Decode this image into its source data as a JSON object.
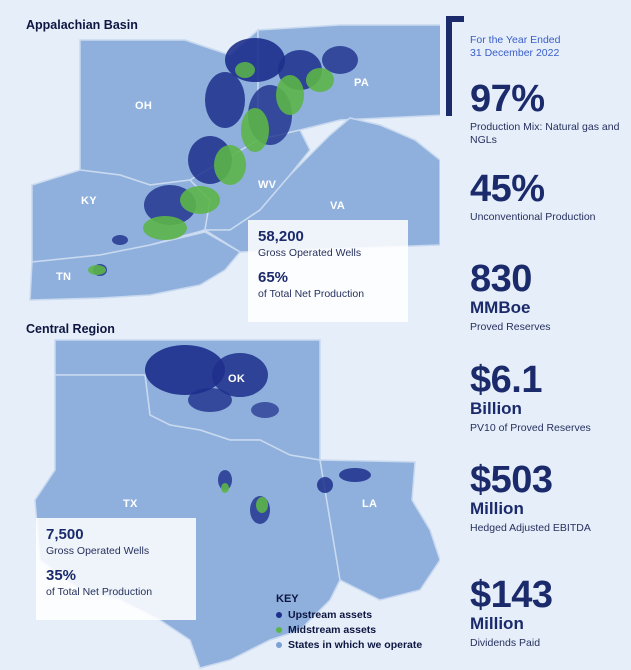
{
  "regions": {
    "appalachian": {
      "title": "Appalachian Basin",
      "states": [
        "OH",
        "PA",
        "KY",
        "WV",
        "VA",
        "TN"
      ],
      "stats": {
        "wells_value": "58,200",
        "wells_label": "Gross Operated Wells",
        "production_value": "65%",
        "production_label": "of Total Net Production"
      }
    },
    "central": {
      "title": "Central Region",
      "states": [
        "OK",
        "TX",
        "LA"
      ],
      "stats": {
        "wells_value": "7,500",
        "wells_label": "Gross Operated Wells",
        "production_value": "35%",
        "production_label": "of Total Net Production"
      }
    }
  },
  "key": {
    "title": "KEY",
    "items": [
      {
        "label": "Upstream assets",
        "color": "#1d2f8c"
      },
      {
        "label": "Midstream assets",
        "color": "#5cb548"
      },
      {
        "label": "States in which we operate",
        "color": "#7ea0d6"
      }
    ]
  },
  "sidebar": {
    "period_line1": "For the Year Ended",
    "period_line2": "31 December 2022",
    "metrics": [
      {
        "value": "97%",
        "unit": "",
        "desc": "Production Mix: Natural gas and NGLs"
      },
      {
        "value": "45%",
        "unit": "",
        "desc": "Unconventional Production"
      },
      {
        "value": "830",
        "unit": "MMBoe",
        "desc": "Proved Reserves"
      },
      {
        "value": "$6.1",
        "unit": "Billion",
        "desc": "PV10 of Proved Reserves"
      },
      {
        "value": "$503",
        "unit": "Million",
        "desc": "Hedged Adjusted EBITDA"
      },
      {
        "value": "$143",
        "unit": "Million",
        "desc": "Dividends Paid"
      }
    ]
  },
  "colors": {
    "state_fill": "#8fb0dd",
    "state_border": "#c9d9ef",
    "upstream": "#1d2f8c",
    "midstream": "#5cb548",
    "navy": "#1b2a6b"
  }
}
